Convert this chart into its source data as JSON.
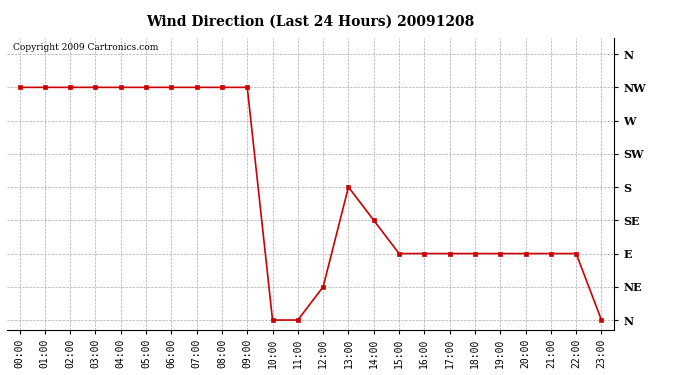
{
  "title": "Wind Direction (Last 24 Hours) 20091208",
  "copyright_text": "Copyright 2009 Cartronics.com",
  "line_color": "#cc0000",
  "marker": "s",
  "marker_size": 3,
  "bg_color": "#ffffff",
  "grid_color": "#aaaaaa",
  "x_labels": [
    "00:00",
    "01:00",
    "02:00",
    "03:00",
    "04:00",
    "05:00",
    "06:00",
    "07:00",
    "08:00",
    "09:00",
    "10:00",
    "11:00",
    "12:00",
    "13:00",
    "14:00",
    "15:00",
    "16:00",
    "17:00",
    "18:00",
    "19:00",
    "20:00",
    "21:00",
    "22:00",
    "23:00"
  ],
  "y_ticks": [
    0,
    1,
    2,
    3,
    4,
    5,
    6,
    7,
    8
  ],
  "y_labels": [
    "N",
    "NE",
    "E",
    "SE",
    "S",
    "SW",
    "W",
    "NW",
    "N"
  ],
  "data_points": {
    "00:00": 7,
    "01:00": 7,
    "02:00": 7,
    "03:00": 7,
    "04:00": 7,
    "05:00": 7,
    "06:00": 7,
    "07:00": 7,
    "08:00": 7,
    "09:00": 7,
    "10:00": 0,
    "11:00": 0,
    "12:00": 1,
    "13:00": 4,
    "14:00": 3,
    "15:00": 2,
    "16:00": 2,
    "17:00": 2,
    "18:00": 2,
    "19:00": 2,
    "20:00": 2,
    "21:00": 2,
    "22:00": 2,
    "23:00": 0
  }
}
